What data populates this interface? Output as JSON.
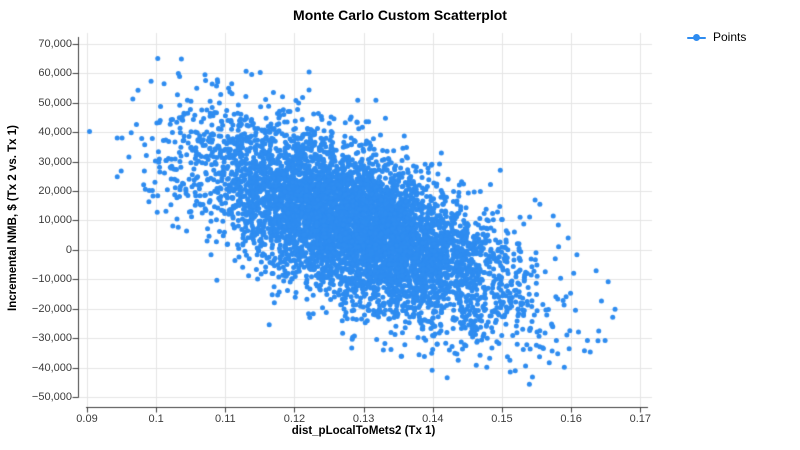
{
  "page": {
    "background": "#ffffff"
  },
  "chart_data": {
    "type": "scatter",
    "title": "Monte Carlo Custom Scatterplot",
    "xlabel": "dist_pLocalToMets2 (Tx 1)",
    "ylabel": "Incremental NMB, $ (Tx 2 vs. Tx 1)",
    "grid": true,
    "legend": {
      "position": "top-right",
      "items": [
        {
          "label": "Points",
          "marker": "line-dot",
          "color": "#2E8CF0"
        }
      ]
    },
    "x_axis": {
      "range": [
        0.09,
        0.17
      ],
      "ticks": [
        0.09,
        0.1,
        0.11,
        0.12,
        0.13,
        0.14,
        0.15,
        0.16,
        0.17
      ],
      "tick_labels": [
        "0.09",
        "0.1",
        "0.11",
        "0.12",
        "0.13",
        "0.14",
        "0.15",
        "0.16",
        "0.17"
      ]
    },
    "y_axis": {
      "range": [
        -50000,
        70000
      ],
      "ticks": [
        70000,
        60000,
        50000,
        40000,
        30000,
        20000,
        10000,
        0,
        -10000,
        -20000,
        -30000,
        -40000,
        -50000
      ],
      "tick_labels": [
        "70,000",
        "60,000",
        "50,000",
        "40,000",
        "30,000",
        "20,000",
        "10,000",
        "0",
        "−10,000",
        "−20,000",
        "−30,000",
        "−40,000",
        "−50,000"
      ]
    },
    "series": [
      {
        "name": "Points",
        "type": "scatter",
        "color": "#2E8CF0",
        "marker": "circle",
        "marker_radius": 2.5,
        "n_points": 6000,
        "distribution": {
          "kind": "seeded-bivariate-normal-regression",
          "seed": 1357924,
          "x_mean": 0.1287,
          "x_sd": 0.0114,
          "slope": -950000,
          "intercept": 130500,
          "residual_sd": 13000,
          "correlation": -0.65,
          "x_clip": [
            0.0903,
            0.1672
          ],
          "y_clip": [
            -48000,
            65000
          ]
        }
      }
    ],
    "colors": {
      "grid": "#E5E5E5",
      "axis": "#3C3C3C",
      "tick_text": "#3C3C3C",
      "title_text": "#000000"
    }
  }
}
